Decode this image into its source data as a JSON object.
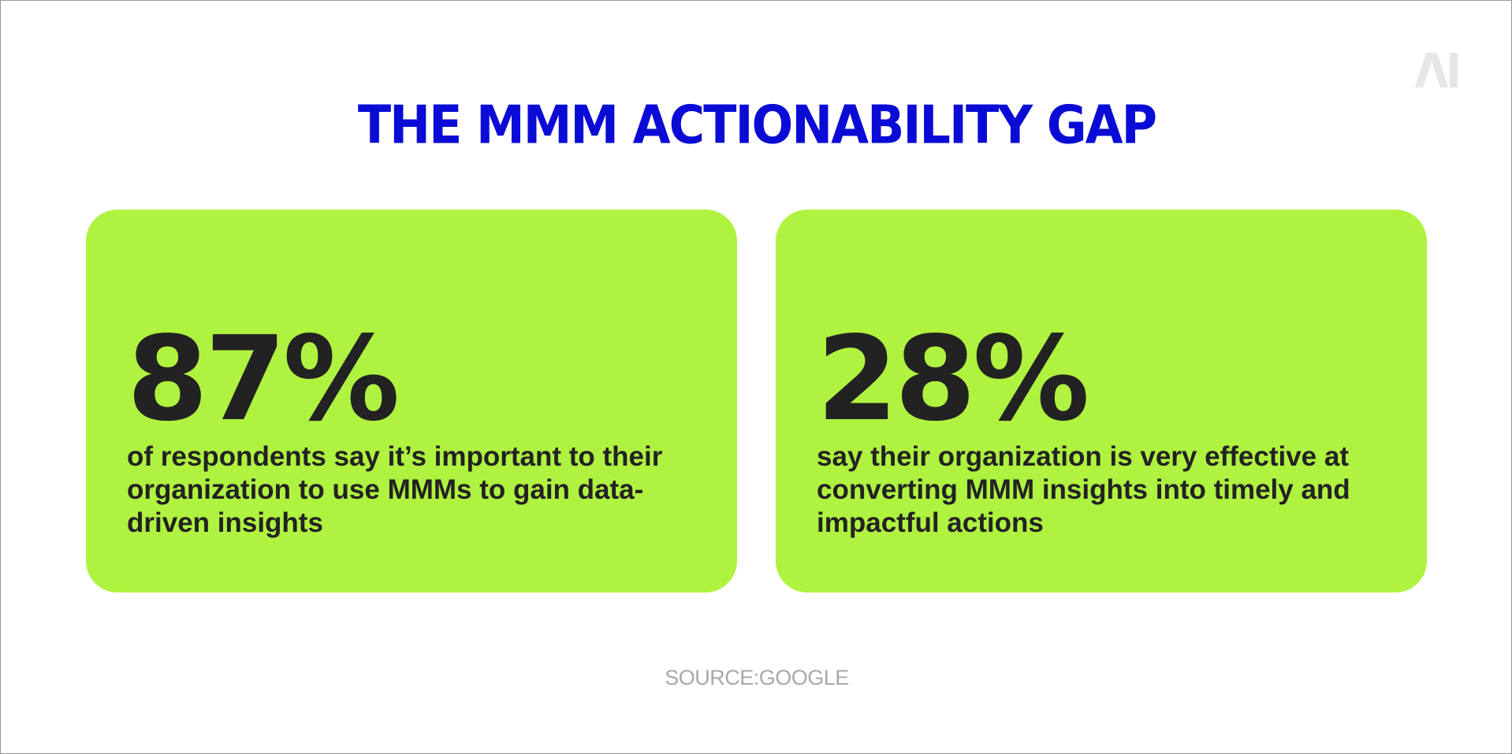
{
  "title": "THE MMM ACTIONABILITY GAP",
  "logo": {
    "text": "AI",
    "icon": "ai-logo-icon",
    "color": "#e6e6e6"
  },
  "cards": [
    {
      "stat": "87%",
      "description": "of respondents say it’s important to their organization to use MMMs to gain data-driven insights"
    },
    {
      "stat": "28%",
      "description": "say their organization is very effective at converting MMM insights into timely and impactful actions"
    }
  ],
  "source": "SOURCE:GOOGLE",
  "colors": {
    "title": "#0b0bd6",
    "card_background": "#b0f240",
    "text_dark": "#222222",
    "source_text": "#a8a8a8"
  }
}
